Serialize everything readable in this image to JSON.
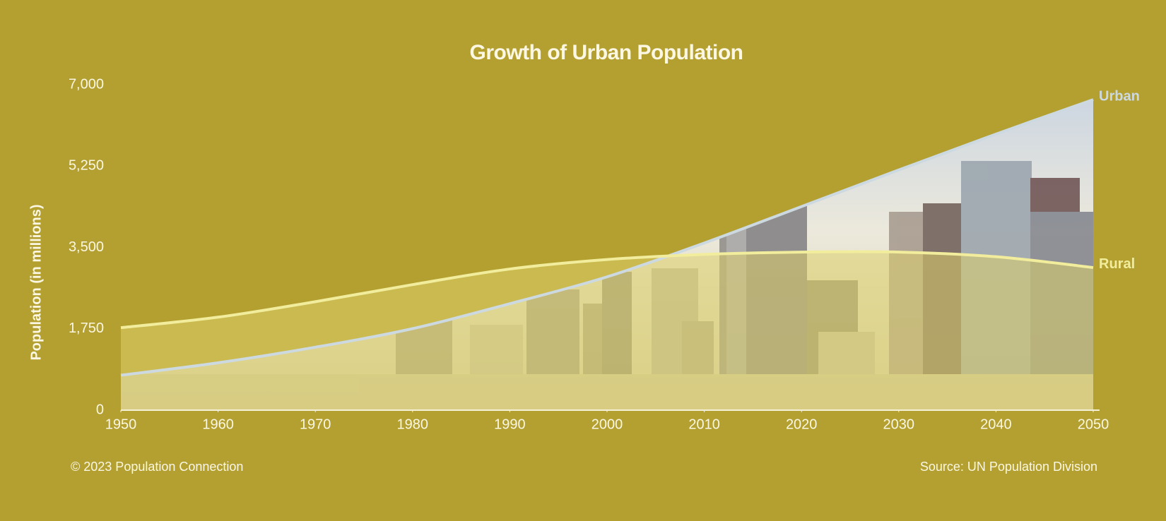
{
  "chart_data": {
    "type": "line",
    "title": "Growth of Urban Population",
    "y_label": "Population (in millions)",
    "credit": "© 2023 Population Connection",
    "source": "Source: UN Population Division",
    "x": [
      1950,
      1960,
      1970,
      1980,
      1990,
      2000,
      2010,
      2020,
      2030,
      2040,
      2050
    ],
    "series": [
      {
        "name": "Urban",
        "color": "#cdd9e0",
        "values": [
          751,
          1019,
          1354,
          1754,
          2290,
          2868,
          3595,
          4379,
          5167,
          5938,
          6680
        ]
      },
      {
        "name": "Rural",
        "color": "#f1ed9c",
        "values": [
          1774,
          2000,
          2333,
          2700,
          3036,
          3240,
          3350,
          3400,
          3400,
          3300,
          3068
        ]
      }
    ],
    "xlim": [
      1950,
      2050
    ],
    "xticks": [
      1950,
      1960,
      1970,
      1980,
      1990,
      2000,
      2010,
      2020,
      2030,
      2040,
      2050
    ],
    "ylim": [
      0,
      7000
    ],
    "yticks": [
      0,
      {
        "value": 1750,
        "label": "1,750"
      },
      {
        "value": 3500,
        "label": "3,500"
      },
      {
        "value": 5250,
        "label": "5,250"
      },
      {
        "value": 7000,
        "label": "7,000"
      }
    ],
    "grid": false
  }
}
